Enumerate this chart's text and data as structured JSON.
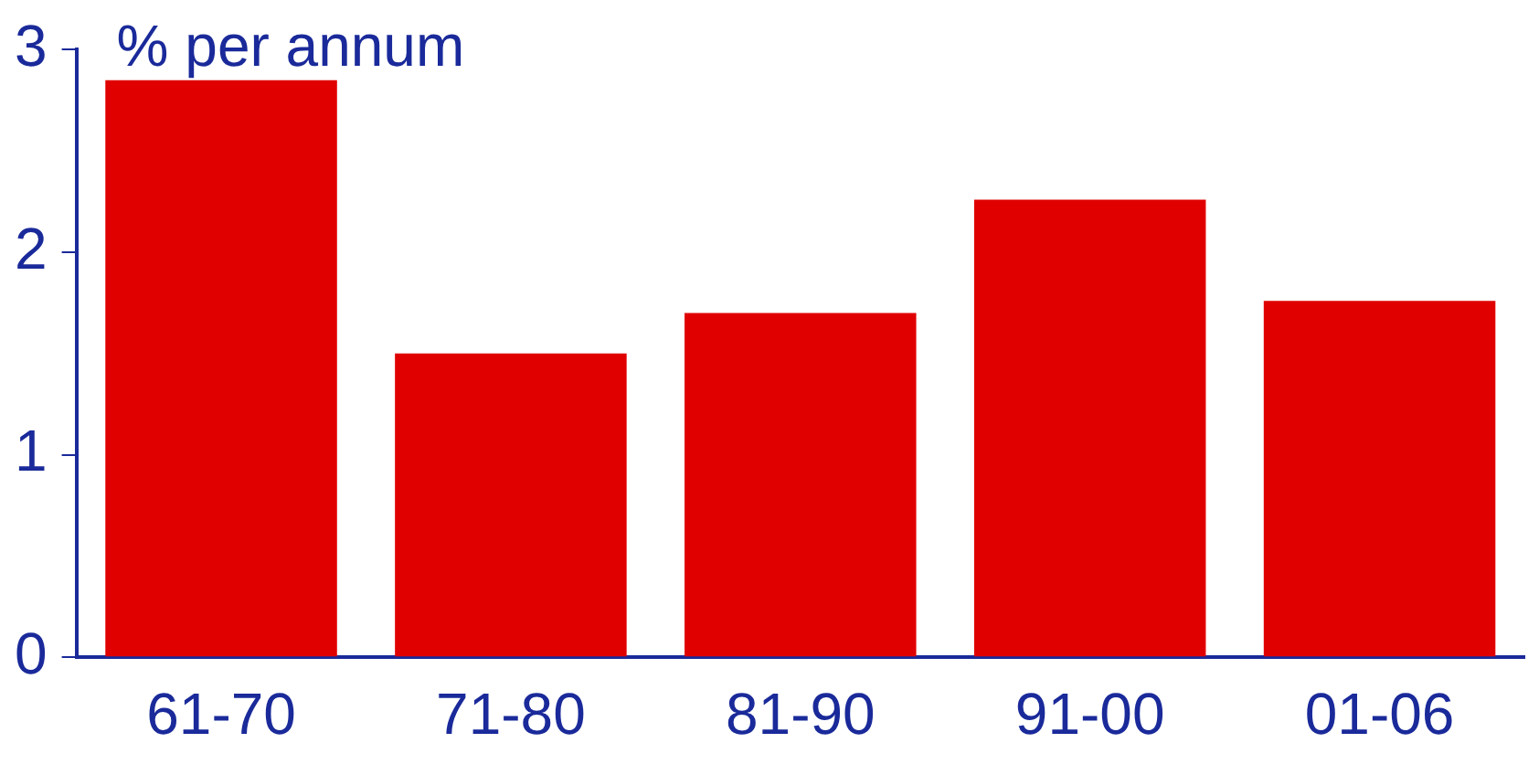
{
  "chart_data": {
    "type": "bar",
    "ylabel": "% per annum",
    "categories": [
      "61-70",
      "71-80",
      "81-90",
      "91-00",
      "01-06"
    ],
    "series": [
      {
        "color": "#e00000",
        "values": [
          2.85,
          1.5,
          1.7,
          2.26,
          1.76
        ]
      }
    ],
    "ylim": [
      0,
      3
    ],
    "yticks": [
      0,
      1,
      2,
      3
    ],
    "grid": false,
    "legend": false
  }
}
